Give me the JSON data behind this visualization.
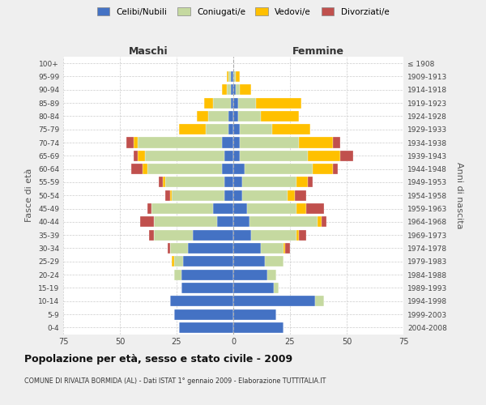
{
  "age_groups": [
    "0-4",
    "5-9",
    "10-14",
    "15-19",
    "20-24",
    "25-29",
    "30-34",
    "35-39",
    "40-44",
    "45-49",
    "50-54",
    "55-59",
    "60-64",
    "65-69",
    "70-74",
    "75-79",
    "80-84",
    "85-89",
    "90-94",
    "95-99",
    "100+"
  ],
  "birth_years": [
    "2004-2008",
    "1999-2003",
    "1994-1998",
    "1989-1993",
    "1984-1988",
    "1979-1983",
    "1974-1978",
    "1969-1973",
    "1964-1968",
    "1959-1963",
    "1954-1958",
    "1949-1953",
    "1944-1948",
    "1939-1943",
    "1934-1938",
    "1929-1933",
    "1924-1928",
    "1919-1923",
    "1914-1918",
    "1909-1913",
    "≤ 1908"
  ],
  "maschi": {
    "celibi": [
      24,
      26,
      28,
      23,
      23,
      22,
      20,
      18,
      7,
      9,
      4,
      4,
      5,
      4,
      5,
      2,
      2,
      1,
      1,
      1,
      0
    ],
    "coniugati": [
      0,
      0,
      0,
      0,
      3,
      4,
      8,
      17,
      28,
      27,
      23,
      26,
      33,
      35,
      37,
      10,
      9,
      8,
      2,
      1,
      0
    ],
    "vedovi": [
      0,
      0,
      0,
      0,
      0,
      1,
      0,
      0,
      0,
      0,
      1,
      1,
      2,
      3,
      2,
      12,
      5,
      4,
      2,
      1,
      0
    ],
    "divorziati": [
      0,
      0,
      0,
      0,
      0,
      0,
      1,
      2,
      6,
      2,
      2,
      2,
      5,
      2,
      3,
      0,
      0,
      0,
      0,
      0,
      0
    ]
  },
  "femmine": {
    "nubili": [
      22,
      19,
      36,
      18,
      15,
      14,
      12,
      8,
      7,
      6,
      4,
      4,
      5,
      3,
      3,
      3,
      2,
      2,
      1,
      0,
      0
    ],
    "coniugate": [
      0,
      0,
      4,
      2,
      4,
      8,
      10,
      20,
      30,
      22,
      20,
      24,
      30,
      30,
      26,
      14,
      10,
      8,
      2,
      1,
      0
    ],
    "vedove": [
      0,
      0,
      0,
      0,
      0,
      0,
      1,
      1,
      2,
      4,
      3,
      5,
      9,
      14,
      15,
      17,
      17,
      20,
      5,
      2,
      0
    ],
    "divorziate": [
      0,
      0,
      0,
      0,
      0,
      0,
      2,
      3,
      2,
      8,
      5,
      2,
      2,
      6,
      3,
      0,
      0,
      0,
      0,
      0,
      0
    ]
  },
  "colors": {
    "celibi": "#4472c4",
    "coniugati": "#c5d9a0",
    "vedovi": "#ffc000",
    "divorziati": "#c0504d"
  },
  "title": "Popolazione per età, sesso e stato civile - 2009",
  "subtitle": "COMUNE DI RIVALTA BORMIDA (AL) - Dati ISTAT 1° gennaio 2009 - Elaborazione TUTTITALIA.IT",
  "xlabel_left": "Maschi",
  "xlabel_right": "Femmine",
  "ylabel_left": "Fasce di età",
  "ylabel_right": "Anni di nascita",
  "xlim": 75,
  "background_color": "#efefef",
  "plot_background": "#ffffff"
}
